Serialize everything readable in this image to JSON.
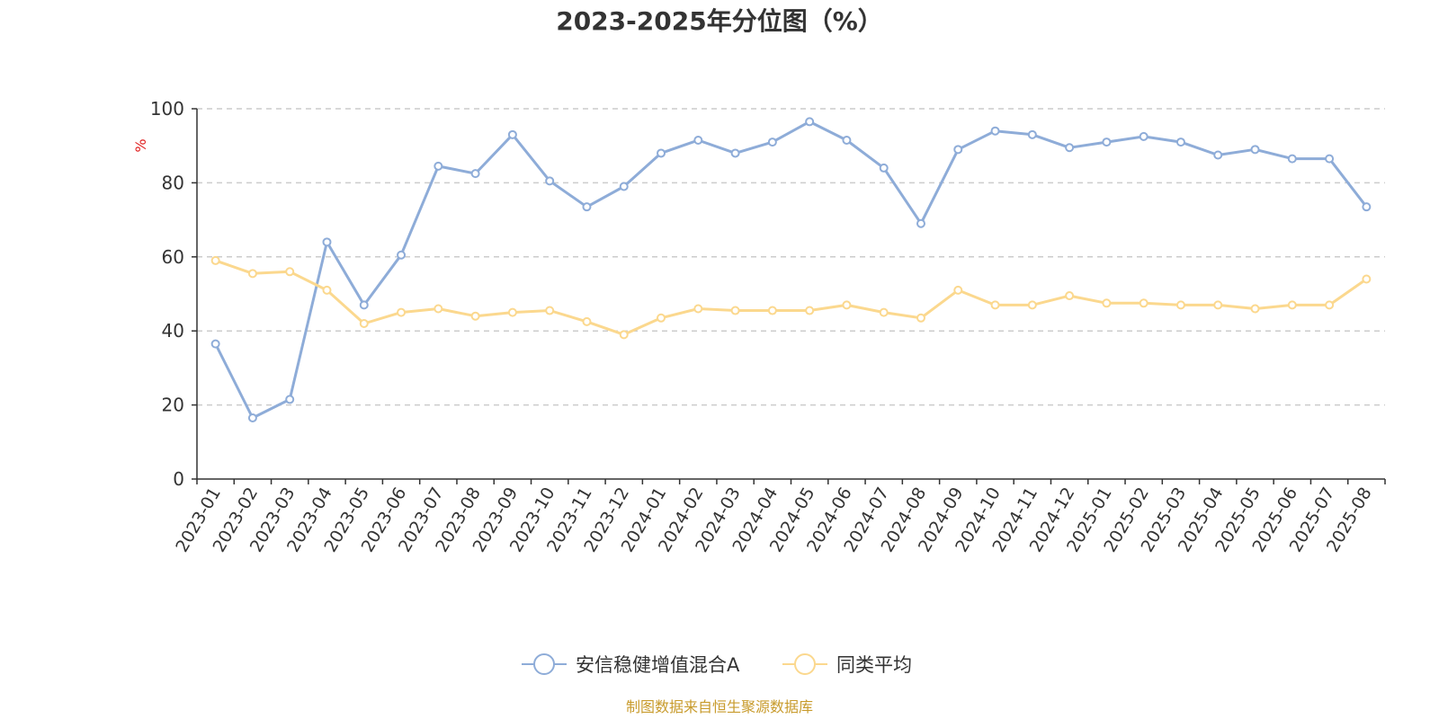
{
  "chart_data": {
    "type": "line",
    "title": "2023-2025年分位图（%）",
    "ylabel": "%",
    "ylim": [
      0,
      100
    ],
    "y_ticks": [
      "0",
      "20",
      "40",
      "60",
      "80",
      "100"
    ],
    "grid": true,
    "legend_position": "bottom-center",
    "categories": [
      "2023-01",
      "2023-02",
      "2023-03",
      "2023-04",
      "2023-05",
      "2023-06",
      "2023-07",
      "2023-08",
      "2023-09",
      "2023-10",
      "2023-11",
      "2023-12",
      "2024-01",
      "2024-02",
      "2024-03",
      "2024-04",
      "2024-05",
      "2024-06",
      "2024-07",
      "2024-08",
      "2024-09",
      "2024-10",
      "2024-11",
      "2024-12",
      "2025-01",
      "2025-02",
      "2025-03",
      "2025-04",
      "2025-05",
      "2025-06",
      "2025-07",
      "2025-08"
    ],
    "series": [
      {
        "name": "安信稳健增值混合A",
        "color": "#8eacd8",
        "values": [
          36.5,
          16.5,
          21.5,
          64,
          47,
          60.5,
          84.5,
          82.5,
          93,
          80.5,
          73.5,
          79,
          88,
          91.5,
          88,
          91,
          96.5,
          91.5,
          84,
          69,
          89,
          94,
          93,
          89.5,
          91,
          92.5,
          91,
          87.5,
          89,
          86.5,
          86.5,
          73.5
        ]
      },
      {
        "name": "同类平均",
        "color": "#fbd88e",
        "values": [
          59,
          55.5,
          56,
          51,
          42,
          45,
          46,
          44,
          45,
          45.5,
          42.5,
          39,
          43.5,
          46,
          45.5,
          45.5,
          45.5,
          47,
          45,
          43.5,
          51,
          47,
          47,
          49.5,
          47.5,
          47.5,
          47,
          47,
          46,
          47,
          47,
          54
        ]
      }
    ]
  },
  "footer": {
    "source": "制图数据来自恒生聚源数据库"
  }
}
